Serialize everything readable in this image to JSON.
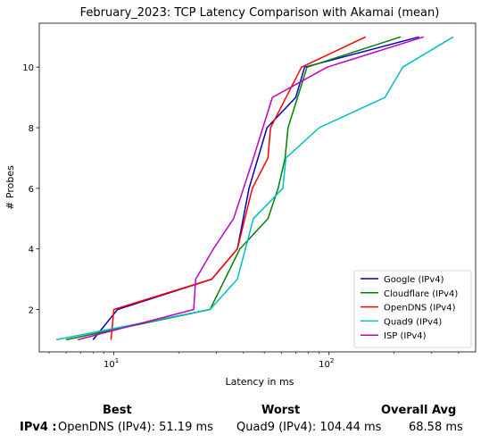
{
  "chart_data": {
    "type": "line",
    "title": "February_2023: TCP Latency Comparison with Akamai (mean)",
    "xlabel": "Latency in ms",
    "ylabel": "# Probes",
    "xscale": "log",
    "xlim": [
      4.5,
      480
    ],
    "ylim": [
      0.6,
      11.45
    ],
    "x_ticks": [
      {
        "value": 10,
        "label": "10^1"
      },
      {
        "value": 100,
        "label": "10^2"
      }
    ],
    "y_ticks": [
      2,
      4,
      6,
      8,
      10
    ],
    "legend_position": "lower right",
    "series": [
      {
        "name": "Google (IPv4)",
        "color": "#0000bf",
        "points": [
          [
            8.0,
            1
          ],
          [
            10.4,
            2
          ],
          [
            28.5,
            3
          ],
          [
            37.5,
            4
          ],
          [
            42.5,
            6
          ],
          [
            51.5,
            8
          ],
          [
            70.0,
            9
          ],
          [
            77.0,
            10
          ],
          [
            262,
            11
          ]
        ]
      },
      {
        "name": "Cloudflare (IPv4)",
        "color": "#008000",
        "points": [
          [
            6.0,
            1
          ],
          [
            28.0,
            2
          ],
          [
            38.5,
            4
          ],
          [
            52.0,
            5
          ],
          [
            58.0,
            6
          ],
          [
            62.5,
            7
          ],
          [
            64.5,
            8
          ],
          [
            79.0,
            10
          ],
          [
            215,
            11
          ]
        ]
      },
      {
        "name": "OpenDNS (IPv4)",
        "color": "#ff0000",
        "points": [
          [
            9.7,
            1
          ],
          [
            10.0,
            2
          ],
          [
            28.5,
            3
          ],
          [
            37.5,
            4
          ],
          [
            44.0,
            6
          ],
          [
            52.0,
            7
          ],
          [
            53.5,
            8
          ],
          [
            74.5,
            10
          ],
          [
            148,
            11
          ]
        ]
      },
      {
        "name": "Quad9 (IPv4)",
        "color": "#00bfbf",
        "points": [
          [
            5.4,
            1
          ],
          [
            28.0,
            2
          ],
          [
            37.5,
            3
          ],
          [
            44.5,
            5
          ],
          [
            61.0,
            6
          ],
          [
            63.0,
            7
          ],
          [
            90.0,
            8
          ],
          [
            182,
            9
          ],
          [
            220,
            10
          ],
          [
            378,
            11
          ]
        ]
      },
      {
        "name": "ISP (IPv4)",
        "color": "#bf00bf",
        "points": [
          [
            6.8,
            1
          ],
          [
            23.5,
            2
          ],
          [
            24.0,
            3
          ],
          [
            29.0,
            4
          ],
          [
            36.0,
            5
          ],
          [
            44.5,
            7
          ],
          [
            54.5,
            9
          ],
          [
            98.0,
            10
          ],
          [
            275,
            11
          ]
        ]
      }
    ]
  },
  "summary": {
    "best_header": "Best",
    "worst_header": "Worst",
    "avg_header": "Overall Avg",
    "row_label": "IPv4 :",
    "best_value": "OpenDNS (IPv4): 51.19 ms",
    "worst_value": "Quad9 (IPv4): 104.44 ms",
    "avg_value": "68.58 ms"
  }
}
